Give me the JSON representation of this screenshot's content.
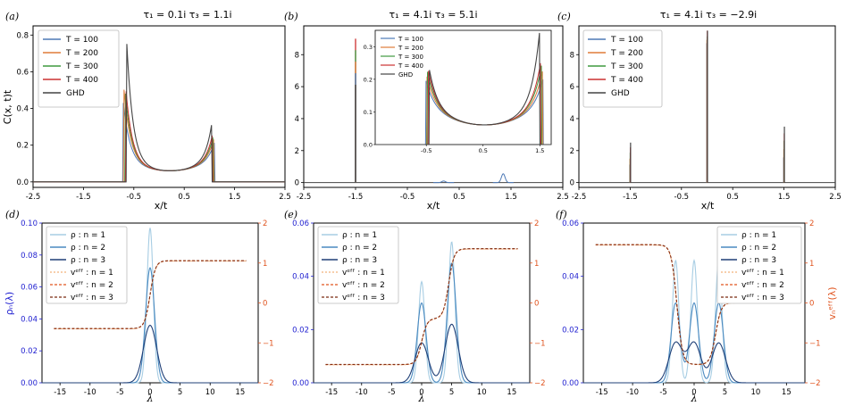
{
  "colors": {
    "T100": "#4d79b6",
    "T200": "#e07b39",
    "T300": "#3f9a3f",
    "T400": "#cc3030",
    "GHD": "#444444",
    "n1": "#a7cde3",
    "n2": "#4a8ac0",
    "n3": "#1f3f77",
    "veff": "#e0541f",
    "left_axis_blue": "#1f1fd0",
    "right_axis_orange": "#e0541f"
  },
  "top_panels": [
    {
      "tag": "(a)",
      "title": "τ₁ = 0.1i  τ₃ = 1.1i",
      "ylabel": "C(x, t)t",
      "xlabel": "x/t"
    },
    {
      "tag": "(b)",
      "title": "τ₁ = 4.1i  τ₃ = 5.1i",
      "ylabel": "",
      "xlabel": "x/t"
    },
    {
      "tag": "(c)",
      "title": "τ₁ = 4.1i  τ₃ = −2.9i",
      "ylabel": "",
      "xlabel": "x/t"
    }
  ],
  "bottom_panels": [
    {
      "tag": "(d)",
      "ylabel_left": "ρₙ(λ)",
      "ylabel_right": "",
      "xlabel": "λ"
    },
    {
      "tag": "(e)",
      "ylabel_left": "",
      "ylabel_right": "",
      "xlabel": "λ"
    },
    {
      "tag": "(f)",
      "ylabel_left": "",
      "ylabel_right": "vₙᵉᶠᶠ(λ)",
      "xlabel": "λ"
    }
  ],
  "legend_top": [
    "T = 100",
    "T = 200",
    "T = 300",
    "T = 400",
    "GHD"
  ],
  "legend_bottom": [
    "ρ : n = 1",
    "ρ : n = 2",
    "ρ : n = 3",
    "vᵉᶠᶠ : n = 1",
    "vᵉᶠᶠ : n = 2",
    "vᵉᶠᶠ : n = 3"
  ],
  "chart_data": [
    {
      "type": "line",
      "panel": "a",
      "x_ticks": [
        "-2.5",
        "-1.5",
        "-0.5",
        "0.5",
        "1.5",
        "2.5"
      ],
      "y_ticks": [
        "0.0",
        "0.2",
        "0.4",
        "0.6",
        "0.8"
      ],
      "xlim": [
        -2.5,
        2.5
      ],
      "ylim": [
        -0.03,
        0.85
      ],
      "xlabel": "x/t",
      "ylabel": "C(x, t)t",
      "legend_position": "top-left",
      "support": [
        -0.65,
        1.05
      ],
      "peaks": {
        "T = 100": [
          0.38,
          0.17
        ],
        "T = 200": [
          0.45,
          0.19
        ],
        "T = 300": [
          0.47,
          0.2
        ],
        "T = 400": [
          0.48,
          0.21
        ],
        "GHD": [
          0.76,
          0.27
        ]
      },
      "valley": 0.06
    },
    {
      "type": "line",
      "panel": "b",
      "x_ticks": [
        "-2.5",
        "-1.5",
        "-0.5",
        "0.5",
        "1.5",
        "2.5"
      ],
      "y_ticks": [
        "0",
        "2",
        "4",
        "6",
        "8"
      ],
      "xlim": [
        -2.5,
        2.5
      ],
      "ylim": [
        -0.3,
        9.8
      ],
      "xlabel": "x/t",
      "spikes": [
        {
          "x": -1.5,
          "y": 9.0
        }
      ],
      "bumps": [
        {
          "x": 0.2,
          "y": 0.1
        },
        {
          "x": 1.35,
          "y": 0.55
        }
      ],
      "inset": {
        "x_ticks": [
          "-0.5",
          "0.5",
          "1.5"
        ],
        "y_ticks": [
          "0.0",
          "0.1",
          "0.2",
          "0.3"
        ],
        "xlim": [
          -1.4,
          1.7
        ],
        "ylim": [
          0,
          0.35
        ],
        "support": [
          -0.45,
          1.5
        ],
        "peaks": {
          "T = 100": [
            0.145,
            0.15
          ],
          "T = 200": [
            0.16,
            0.17
          ],
          "T = 300": [
            0.17,
            0.19
          ],
          "T = 400": [
            0.175,
            0.2
          ],
          "GHD": [
            0.18,
            0.3
          ]
        },
        "valley": 0.06
      }
    },
    {
      "type": "line",
      "panel": "c",
      "x_ticks": [
        "-2.5",
        "-1.5",
        "-0.5",
        "0.5",
        "1.5",
        "2.5"
      ],
      "y_ticks": [
        "0",
        "2",
        "4",
        "6",
        "8"
      ],
      "xlim": [
        -2.5,
        2.5
      ],
      "ylim": [
        -0.3,
        9.8
      ],
      "xlabel": "x/t",
      "spikes": [
        {
          "x": -1.5,
          "y": 2.5
        },
        {
          "x": 0.0,
          "y": 9.5
        },
        {
          "x": 1.5,
          "y": 3.5
        }
      ]
    },
    {
      "type": "line",
      "panel": "d",
      "x_ticks": [
        "-15",
        "-10",
        "-5",
        "0",
        "5",
        "10",
        "15"
      ],
      "y_ticks_left": [
        "0.00",
        "0.02",
        "0.04",
        "0.06",
        "0.08",
        "0.10"
      ],
      "y_ticks_right": [
        "−2",
        "−1",
        "0",
        "1",
        "2"
      ],
      "xlim": [
        -18,
        18
      ],
      "ylim_left": [
        0,
        0.1
      ],
      "ylim_right": [
        -2,
        2
      ],
      "xlabel": "λ",
      "ylabel_left": "ρₙ(λ)",
      "legend_position": "top-left",
      "rho_peaks": [
        {
          "center": 0,
          "n1": 0.097,
          "n2": 0.072,
          "n3": 0.036
        }
      ],
      "veff": {
        "levels": [
          -0.65,
          1.05
        ],
        "steps": [
          0
        ]
      }
    },
    {
      "type": "line",
      "panel": "e",
      "x_ticks": [
        "-15",
        "-10",
        "-5",
        "0",
        "5",
        "10",
        "15"
      ],
      "y_ticks_left": [
        "0.00",
        "0.02",
        "0.04",
        "0.06"
      ],
      "y_ticks_right": [
        "−2",
        "−1",
        "0",
        "1",
        "2"
      ],
      "xlim": [
        -18,
        18
      ],
      "ylim_left": [
        0,
        0.06
      ],
      "ylim_right": [
        -2,
        2
      ],
      "xlabel": "λ",
      "legend_position": "top-left",
      "rho_peaks": [
        {
          "center": 0,
          "n1": 0.038,
          "n2": 0.03,
          "n3": 0.015
        },
        {
          "center": 5,
          "n1": 0.053,
          "n2": 0.045,
          "n3": 0.022
        }
      ],
      "veff": {
        "levels": [
          -1.55,
          -0.4,
          1.35
        ],
        "steps": [
          0,
          4.5
        ]
      }
    },
    {
      "type": "line",
      "panel": "f",
      "x_ticks": [
        "-15",
        "-10",
        "-5",
        "0",
        "5",
        "10",
        "15"
      ],
      "y_ticks_left": [
        "0.00",
        "0.02",
        "0.04",
        "0.06"
      ],
      "y_ticks_right": [
        "−2",
        "−1",
        "0",
        "1",
        "2"
      ],
      "xlim": [
        -18,
        18
      ],
      "ylim_left": [
        0,
        0.06
      ],
      "ylim_right": [
        -2,
        2
      ],
      "xlabel": "λ",
      "ylabel_right": "vₙᵉᶠᶠ(λ)",
      "legend_position": "top-right",
      "rho_peaks": [
        {
          "center": -3,
          "n1": 0.046,
          "n2": 0.03,
          "n3": 0.015
        },
        {
          "center": 0,
          "n1": 0.046,
          "n2": 0.03,
          "n3": 0.015
        },
        {
          "center": 4,
          "n1": 0.046,
          "n2": 0.03,
          "n3": 0.015
        }
      ],
      "veff": {
        "levels": [
          1.45,
          -1.55,
          0
        ],
        "steps": [
          -2.8,
          3.5
        ]
      }
    }
  ]
}
